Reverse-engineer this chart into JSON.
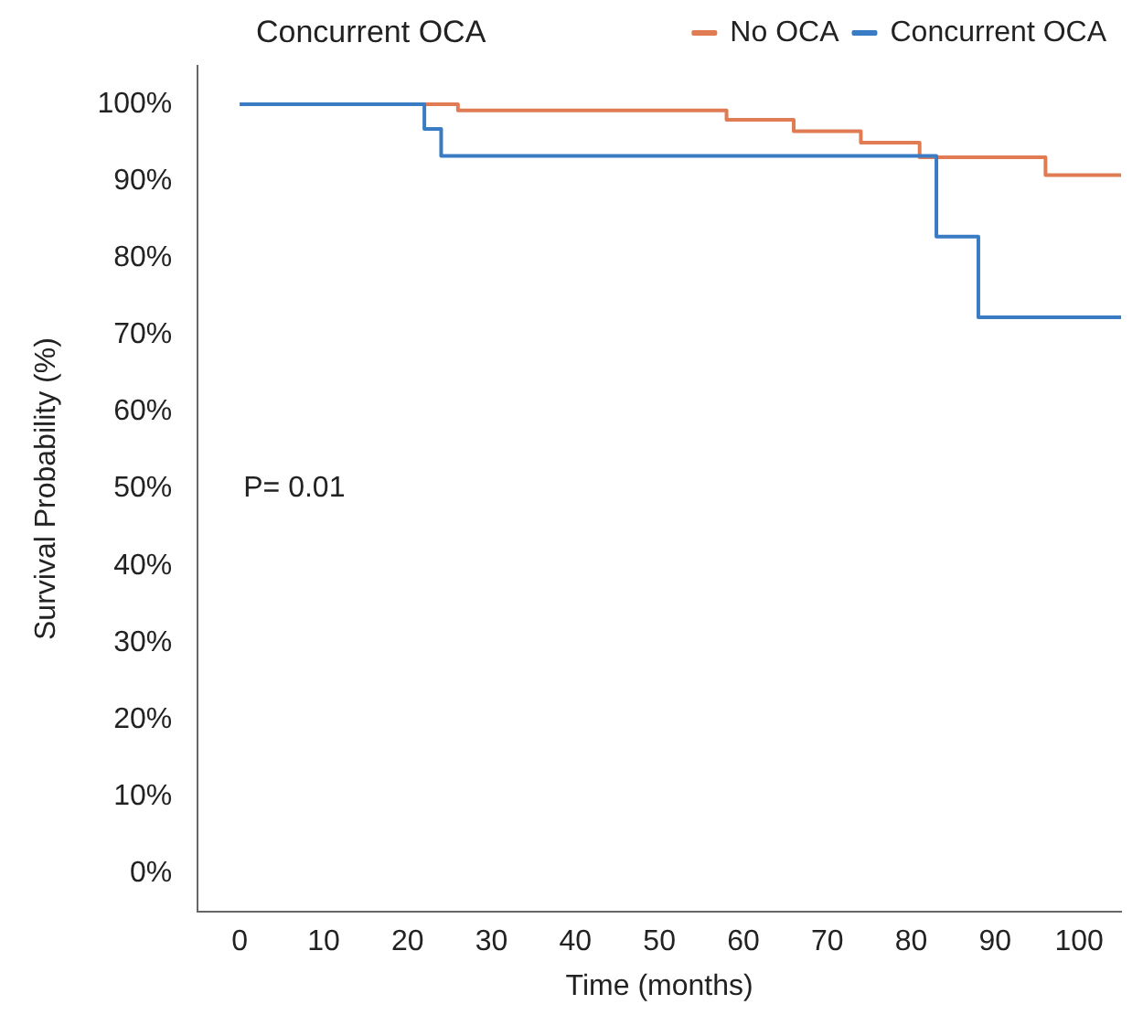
{
  "chart_data": {
    "type": "step",
    "title": "Concurrent OCA",
    "xlabel": "Time (months)",
    "ylabel": "Survival Probability (%)",
    "series": [
      {
        "name": "No OCA",
        "color": "#e07b54",
        "x": [
          0,
          26,
          58,
          66,
          74,
          81,
          96,
          105
        ],
        "values": [
          100,
          99.2,
          98,
          96.5,
          95,
          93.1,
          90.8,
          90.8
        ]
      },
      {
        "name": "Concurrent OCA",
        "color": "#3a7cc4",
        "x": [
          0,
          22,
          24,
          83,
          88,
          105
        ],
        "values": [
          100,
          96.8,
          93.3,
          82.8,
          72.3,
          72.3
        ]
      }
    ],
    "xlim": [
      -5,
      105
    ],
    "xticks": [
      0,
      10,
      20,
      30,
      40,
      50,
      60,
      70,
      80,
      90,
      100
    ],
    "ylim": [
      -5,
      105
    ],
    "yticks": [
      {
        "value": 0,
        "label": "0%"
      },
      {
        "value": 10,
        "label": "10%"
      },
      {
        "value": 20,
        "label": "20%"
      },
      {
        "value": 30,
        "label": "30%"
      },
      {
        "value": 40,
        "label": "40%"
      },
      {
        "value": 50,
        "label": "50%"
      },
      {
        "value": 60,
        "label": "60%"
      },
      {
        "value": 70,
        "label": "70%"
      },
      {
        "value": 80,
        "label": "80%"
      },
      {
        "value": 90,
        "label": "90%"
      },
      {
        "value": 100,
        "label": "100%"
      }
    ],
    "annotations": [
      "P= 0.01"
    ],
    "legend": "top right",
    "grid": false,
    "line_style": "solid",
    "marker": "none"
  }
}
